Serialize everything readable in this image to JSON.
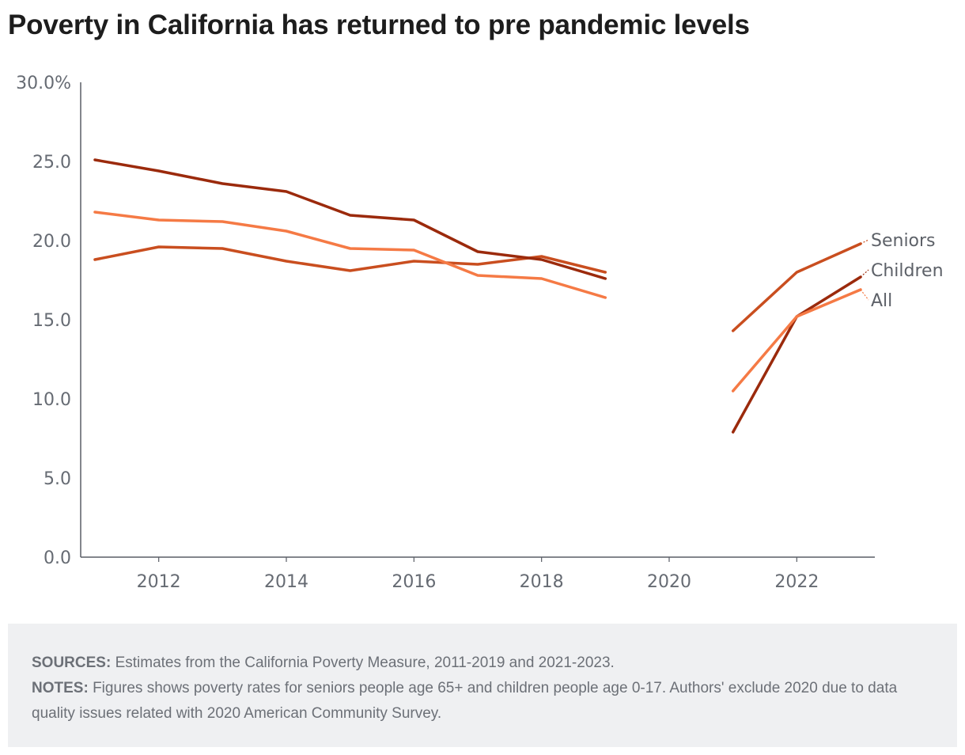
{
  "page": {
    "title": "Poverty in California has returned to pre pandemic levels"
  },
  "notes": {
    "sources_label": "SOURCES:",
    "sources_text": "Estimates from the California Poverty Measure, 2011-2019 and 2021-2023.",
    "notes_label": "NOTES:",
    "notes_text": "Figures shows poverty rates for seniors people age 65+ and children people age 0-17. Authors' exclude 2020 due to data quality issues related with 2020 American Community Survey."
  },
  "chart_data": {
    "type": "line",
    "title": "Poverty in California has returned to pre pandemic levels",
    "xlabel": "",
    "ylabel": "",
    "xlim": [
      2011,
      2023
    ],
    "ylim": [
      0,
      30
    ],
    "x_ticks": [
      2012,
      2014,
      2016,
      2018,
      2020,
      2022
    ],
    "y_ticks": [
      0,
      5,
      10,
      15,
      20,
      25,
      30
    ],
    "y_tick_labels": [
      "0.0",
      "5.0",
      "10.0",
      "15.0",
      "20.0",
      "25.0",
      "30.0%"
    ],
    "grid": false,
    "legend": "direct labels at right end of lines",
    "x": [
      2011,
      2012,
      2013,
      2014,
      2015,
      2016,
      2017,
      2018,
      2019,
      2020,
      2021,
      2022,
      2023
    ],
    "series": [
      {
        "name": "Seniors",
        "color": "#c94e1f",
        "values": [
          18.8,
          19.6,
          19.5,
          18.7,
          18.1,
          18.7,
          18.5,
          19.0,
          18.0,
          null,
          14.3,
          18.0,
          19.8
        ]
      },
      {
        "name": "Children",
        "color": "#9b2a0c",
        "values": [
          25.1,
          24.4,
          23.6,
          23.1,
          21.6,
          21.3,
          19.3,
          18.8,
          17.6,
          null,
          7.9,
          15.2,
          17.7
        ]
      },
      {
        "name": "All",
        "color": "#f57a45",
        "values": [
          21.8,
          21.3,
          21.2,
          20.6,
          19.5,
          19.4,
          17.8,
          17.6,
          16.4,
          null,
          10.5,
          15.2,
          16.9
        ]
      }
    ]
  }
}
